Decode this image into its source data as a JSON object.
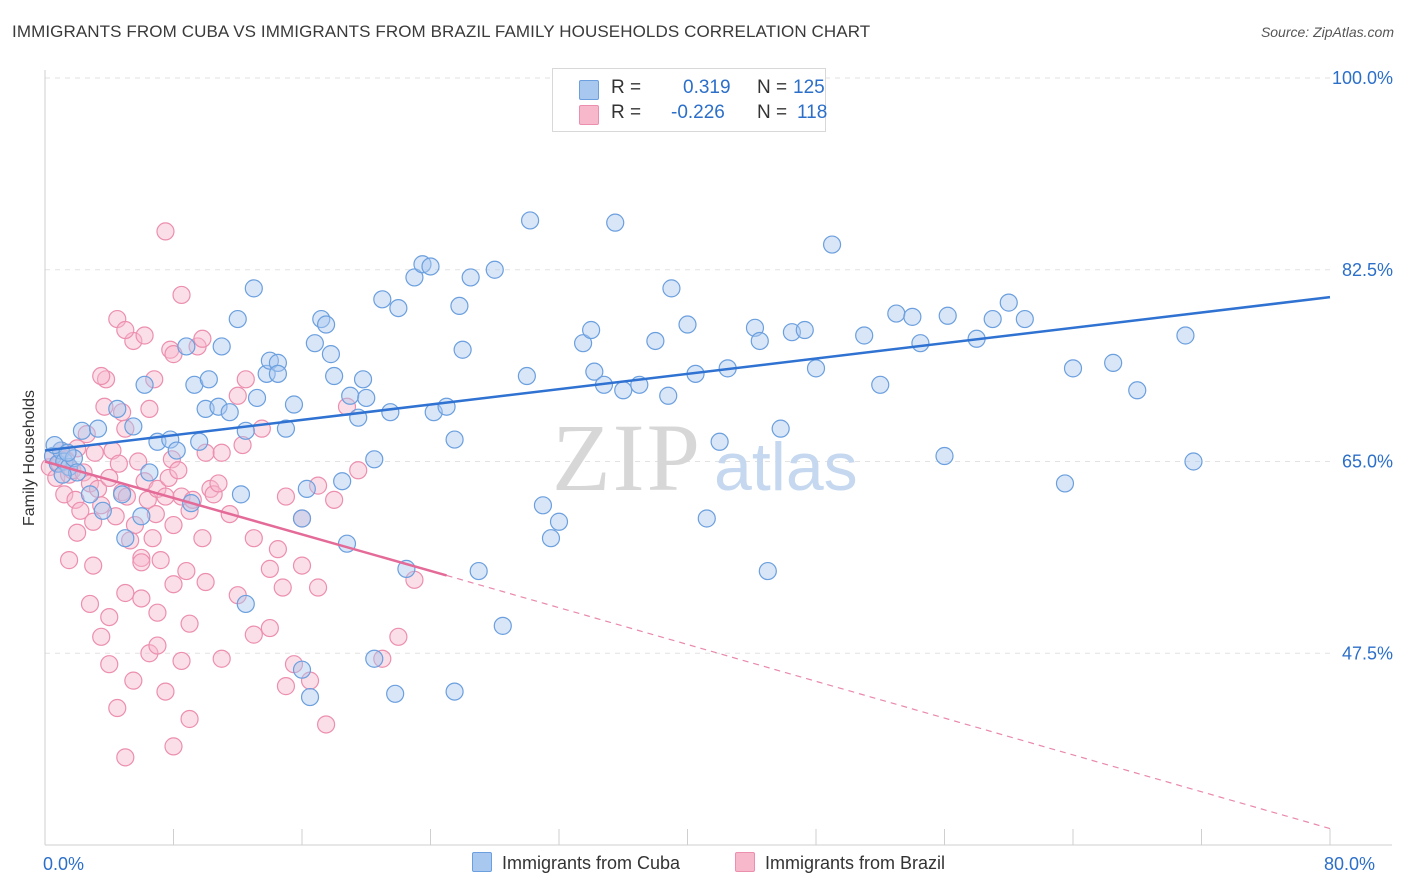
{
  "title": "IMMIGRANTS FROM CUBA VS IMMIGRANTS FROM BRAZIL FAMILY HOUSEHOLDS CORRELATION CHART",
  "source": "Source: ZipAtlas.com",
  "watermark": {
    "zip": "ZIP",
    "atlas": "atlas"
  },
  "legend": {
    "cuba": {
      "r_label": "R =",
      "r_value": "0.319",
      "n_label": "N =",
      "n_value": "125"
    },
    "brazil": {
      "r_label": "R =",
      "r_value": "-0.226",
      "n_label": "N =",
      "n_value": "118"
    }
  },
  "bottom_legend": {
    "cuba": "Immigrants from Cuba",
    "brazil": "Immigrants from Brazil"
  },
  "colors": {
    "cuba_fill": "#a9c8f0",
    "cuba_stroke": "#6b9fde",
    "cuba_line": "#2f72d2",
    "brazil_fill": "#f7b8cc",
    "brazil_stroke": "#ec8fae",
    "brazil_line": "#e46a98",
    "axis_text": "#2c6fc9",
    "grid": "#e2e2e2"
  },
  "chart_data": {
    "type": "scatter",
    "title": "IMMIGRANTS FROM CUBA VS IMMIGRANTS FROM BRAZIL FAMILY HOUSEHOLDS CORRELATION CHART",
    "xlabel": "",
    "ylabel": "Family Households",
    "xlim": [
      0,
      80
    ],
    "ylim": [
      30,
      100
    ],
    "x_tick_labels": [
      "0.0%",
      "80.0%"
    ],
    "y_ticks": [
      47.5,
      65.0,
      82.5,
      100.0
    ],
    "y_tick_labels": [
      "47.5%",
      "65.0%",
      "82.5%",
      "100.0%"
    ],
    "grid": true,
    "legend_position": "top-center",
    "series": [
      {
        "name": "Immigrants from Cuba",
        "trend": {
          "x0": 0,
          "y0": 66.0,
          "x1": 80,
          "y1": 80.0
        },
        "points": [
          [
            0.5,
            65.5
          ],
          [
            0.8,
            64.8
          ],
          [
            1.0,
            66.0
          ],
          [
            1.2,
            65.0
          ],
          [
            1.5,
            64.5
          ],
          [
            1.8,
            65.3
          ],
          [
            2.0,
            64.0
          ],
          [
            0.6,
            66.5
          ],
          [
            1.1,
            63.8
          ],
          [
            1.4,
            65.8
          ],
          [
            2.3,
            67.8
          ],
          [
            2.8,
            62.0
          ],
          [
            3.3,
            68.0
          ],
          [
            4.5,
            69.8
          ],
          [
            3.6,
            60.5
          ],
          [
            4.8,
            62.0
          ],
          [
            5.0,
            58.0
          ],
          [
            5.5,
            68.2
          ],
          [
            6.0,
            60.0
          ],
          [
            6.2,
            72.0
          ],
          [
            6.5,
            64.0
          ],
          [
            7.0,
            66.8
          ],
          [
            7.8,
            67.0
          ],
          [
            8.2,
            66.0
          ],
          [
            8.8,
            75.5
          ],
          [
            9.1,
            61.2
          ],
          [
            9.3,
            72.0
          ],
          [
            9.6,
            66.8
          ],
          [
            10.0,
            69.8
          ],
          [
            10.2,
            72.5
          ],
          [
            10.8,
            70.0
          ],
          [
            11.0,
            75.5
          ],
          [
            11.5,
            69.5
          ],
          [
            12.0,
            78.0
          ],
          [
            12.2,
            62.0
          ],
          [
            12.5,
            67.8
          ],
          [
            13.0,
            80.8
          ],
          [
            13.2,
            70.8
          ],
          [
            13.8,
            73.0
          ],
          [
            14.0,
            74.2
          ],
          [
            14.5,
            74.0
          ],
          [
            15.0,
            68.0
          ],
          [
            15.5,
            70.2
          ],
          [
            16.0,
            59.8
          ],
          [
            16.3,
            62.5
          ],
          [
            16.8,
            75.8
          ],
          [
            17.2,
            78.0
          ],
          [
            17.5,
            77.5
          ],
          [
            17.8,
            74.8
          ],
          [
            18.0,
            72.8
          ],
          [
            18.5,
            63.2
          ],
          [
            18.8,
            57.5
          ],
          [
            19.0,
            71.0
          ],
          [
            19.5,
            69.0
          ],
          [
            19.8,
            72.5
          ],
          [
            20.0,
            70.8
          ],
          [
            20.5,
            65.2
          ],
          [
            21.0,
            79.8
          ],
          [
            21.5,
            69.5
          ],
          [
            22.0,
            79.0
          ],
          [
            22.5,
            55.2
          ],
          [
            23.0,
            81.8
          ],
          [
            23.5,
            83.0
          ],
          [
            24.0,
            82.8
          ],
          [
            24.2,
            69.5
          ],
          [
            25.0,
            70.0
          ],
          [
            25.5,
            67.0
          ],
          [
            25.8,
            79.2
          ],
          [
            26.0,
            75.2
          ],
          [
            26.5,
            81.8
          ],
          [
            27.0,
            55.0
          ],
          [
            28.0,
            82.5
          ],
          [
            28.5,
            50.0
          ],
          [
            30.0,
            72.8
          ],
          [
            30.2,
            87.0
          ],
          [
            31.0,
            61.0
          ],
          [
            31.5,
            58.0
          ],
          [
            32.0,
            59.5
          ],
          [
            33.5,
            75.8
          ],
          [
            34.0,
            77.0
          ],
          [
            34.2,
            73.2
          ],
          [
            34.8,
            72.0
          ],
          [
            35.5,
            86.8
          ],
          [
            36.0,
            71.5
          ],
          [
            37.0,
            72.0
          ],
          [
            38.0,
            76.0
          ],
          [
            38.8,
            71.0
          ],
          [
            39.0,
            80.8
          ],
          [
            40.0,
            77.5
          ],
          [
            40.5,
            73.0
          ],
          [
            41.2,
            59.8
          ],
          [
            42.0,
            66.8
          ],
          [
            42.5,
            73.5
          ],
          [
            44.2,
            77.2
          ],
          [
            44.5,
            76.0
          ],
          [
            45.0,
            55.0
          ],
          [
            45.8,
            68.0
          ],
          [
            46.5,
            76.8
          ],
          [
            47.3,
            77.0
          ],
          [
            48.0,
            73.5
          ],
          [
            49.0,
            84.8
          ],
          [
            51.0,
            76.5
          ],
          [
            52.0,
            72.0
          ],
          [
            53.0,
            78.5
          ],
          [
            54.0,
            78.2
          ],
          [
            54.5,
            75.8
          ],
          [
            56.0,
            65.5
          ],
          [
            56.2,
            78.3
          ],
          [
            58.0,
            76.2
          ],
          [
            59.0,
            78.0
          ],
          [
            60.0,
            79.5
          ],
          [
            61.0,
            78.0
          ],
          [
            63.5,
            63.0
          ],
          [
            64.0,
            73.5
          ],
          [
            66.5,
            74.0
          ],
          [
            68.0,
            71.5
          ],
          [
            71.0,
            76.5
          ],
          [
            71.5,
            65.0
          ],
          [
            12.5,
            52.0
          ],
          [
            16.0,
            46.0
          ],
          [
            16.5,
            43.5
          ],
          [
            20.5,
            47.0
          ],
          [
            21.8,
            43.8
          ],
          [
            25.5,
            44.0
          ],
          [
            14.5,
            73.0
          ]
        ]
      },
      {
        "name": "Immigrants from Brazil",
        "trend": {
          "x0": 0,
          "y0": 65.0,
          "x1": 25,
          "y1": 54.6
        },
        "trend_extension": {
          "x0": 25,
          "y0": 54.6,
          "x1": 80,
          "y1": 31.5
        },
        "points": [
          [
            0.3,
            64.5
          ],
          [
            0.5,
            65.5
          ],
          [
            0.7,
            63.5
          ],
          [
            0.9,
            64.8
          ],
          [
            1.0,
            66.0
          ],
          [
            1.2,
            62.0
          ],
          [
            1.3,
            65.2
          ],
          [
            1.5,
            63.8
          ],
          [
            1.7,
            64.2
          ],
          [
            1.9,
            61.5
          ],
          [
            2.0,
            66.2
          ],
          [
            2.2,
            60.5
          ],
          [
            2.4,
            64.0
          ],
          [
            2.6,
            67.5
          ],
          [
            2.8,
            63.0
          ],
          [
            3.0,
            59.5
          ],
          [
            3.1,
            65.8
          ],
          [
            3.3,
            62.5
          ],
          [
            3.5,
            61.0
          ],
          [
            3.7,
            70.0
          ],
          [
            3.8,
            72.5
          ],
          [
            4.0,
            63.5
          ],
          [
            4.2,
            66.0
          ],
          [
            4.4,
            60.0
          ],
          [
            4.6,
            64.8
          ],
          [
            4.8,
            62.2
          ],
          [
            5.0,
            68.0
          ],
          [
            5.1,
            61.8
          ],
          [
            5.3,
            57.8
          ],
          [
            5.5,
            76.0
          ],
          [
            5.6,
            59.2
          ],
          [
            5.8,
            65.0
          ],
          [
            6.0,
            56.2
          ],
          [
            6.2,
            63.2
          ],
          [
            6.4,
            61.5
          ],
          [
            6.5,
            69.8
          ],
          [
            6.7,
            58.0
          ],
          [
            6.9,
            60.2
          ],
          [
            7.0,
            62.5
          ],
          [
            7.2,
            56.0
          ],
          [
            7.5,
            61.8
          ],
          [
            7.7,
            63.5
          ],
          [
            7.9,
            65.2
          ],
          [
            8.0,
            59.2
          ],
          [
            8.3,
            64.2
          ],
          [
            8.5,
            61.8
          ],
          [
            8.8,
            55.0
          ],
          [
            9.0,
            60.5
          ],
          [
            9.2,
            61.5
          ],
          [
            9.5,
            75.5
          ],
          [
            9.8,
            58.0
          ],
          [
            10.0,
            65.8
          ],
          [
            10.3,
            62.5
          ],
          [
            10.5,
            62.0
          ],
          [
            10.8,
            63.0
          ],
          [
            11.0,
            65.8
          ],
          [
            11.5,
            60.2
          ],
          [
            12.0,
            71.0
          ],
          [
            12.3,
            66.5
          ],
          [
            12.5,
            72.5
          ],
          [
            13.0,
            49.2
          ],
          [
            13.5,
            68.0
          ],
          [
            14.0,
            55.2
          ],
          [
            14.5,
            57.0
          ],
          [
            14.8,
            53.5
          ],
          [
            15.0,
            61.8
          ],
          [
            15.5,
            46.5
          ],
          [
            16.0,
            55.5
          ],
          [
            16.5,
            45.0
          ],
          [
            17.0,
            62.8
          ],
          [
            17.5,
            41.0
          ],
          [
            18.0,
            61.5
          ],
          [
            18.8,
            70.0
          ],
          [
            19.5,
            64.2
          ],
          [
            21.0,
            47.0
          ],
          [
            22.0,
            49.0
          ],
          [
            23.0,
            54.2
          ],
          [
            1.5,
            56.0
          ],
          [
            2.8,
            52.0
          ],
          [
            3.5,
            49.0
          ],
          [
            4.0,
            46.5
          ],
          [
            4.5,
            42.5
          ],
          [
            5.0,
            38.0
          ],
          [
            5.5,
            45.0
          ],
          [
            6.0,
            52.5
          ],
          [
            6.5,
            47.5
          ],
          [
            7.0,
            51.2
          ],
          [
            7.5,
            44.0
          ],
          [
            8.0,
            39.0
          ],
          [
            8.5,
            46.8
          ],
          [
            9.0,
            41.5
          ],
          [
            2.0,
            58.5
          ],
          [
            3.0,
            55.5
          ],
          [
            4.0,
            50.8
          ],
          [
            5.0,
            53.0
          ],
          [
            6.0,
            55.8
          ],
          [
            7.0,
            48.2
          ],
          [
            8.0,
            53.8
          ],
          [
            9.0,
            50.2
          ],
          [
            10.0,
            54.0
          ],
          [
            11.0,
            47.0
          ],
          [
            12.0,
            52.8
          ],
          [
            13.0,
            58.0
          ],
          [
            14.0,
            49.8
          ],
          [
            15.0,
            44.5
          ],
          [
            16.0,
            59.8
          ],
          [
            17.0,
            53.5
          ],
          [
            4.5,
            78.0
          ],
          [
            5.0,
            77.0
          ],
          [
            6.2,
            76.5
          ],
          [
            7.5,
            86.0
          ],
          [
            7.8,
            75.2
          ],
          [
            8.0,
            74.8
          ],
          [
            8.5,
            80.2
          ],
          [
            9.8,
            76.2
          ],
          [
            3.5,
            72.8
          ],
          [
            4.8,
            69.5
          ],
          [
            6.8,
            72.5
          ]
        ]
      }
    ]
  }
}
